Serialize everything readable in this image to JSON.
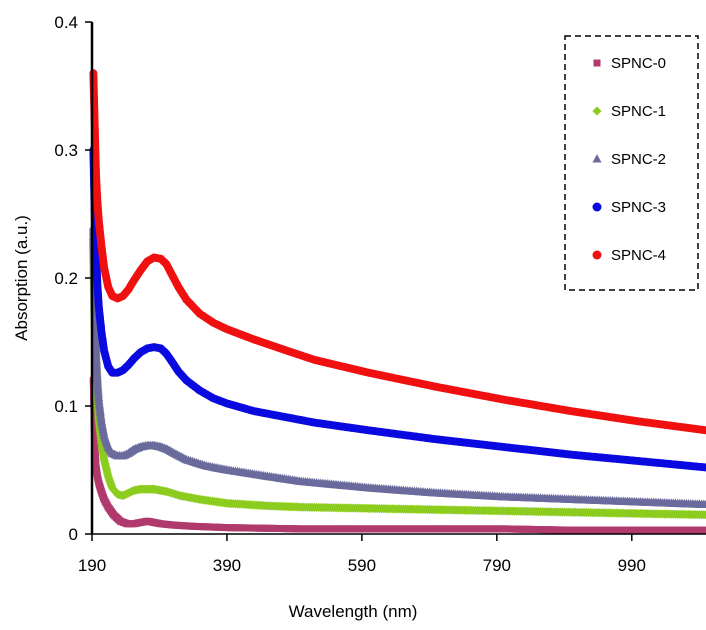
{
  "chart_data": {
    "type": "scatter",
    "xlabel": "Wavelength (nm)",
    "ylabel": "Absorption (a.u.)",
    "xlim": [
      190,
      1100
    ],
    "ylim": [
      0,
      0.4
    ],
    "xticks": [
      190,
      390,
      590,
      790,
      990
    ],
    "yticks": [
      0,
      0.1,
      0.2,
      0.3,
      0.4
    ],
    "xtick_labels": [
      "190",
      "390",
      "590",
      "790",
      "990"
    ],
    "ytick_labels": [
      "0",
      "0.1",
      "0.2",
      "0.3",
      "0.4"
    ],
    "grid": false,
    "legend_position": "top-right",
    "series": [
      {
        "name": "SPNC-0",
        "color": "#b03a6e",
        "marker": "square",
        "x": [
          192,
          194,
          196,
          198,
          200,
          204,
          208,
          214,
          222,
          232,
          242,
          252,
          262,
          272,
          282,
          292,
          310,
          340,
          390,
          500,
          600,
          700,
          800,
          900,
          1000,
          1100
        ],
        "y": [
          0.12,
          0.07,
          0.052,
          0.045,
          0.04,
          0.033,
          0.027,
          0.021,
          0.015,
          0.01,
          0.008,
          0.008,
          0.009,
          0.01,
          0.009,
          0.008,
          0.007,
          0.006,
          0.005,
          0.004,
          0.004,
          0.004,
          0.004,
          0.003,
          0.003,
          0.003
        ]
      },
      {
        "name": "SPNC-1",
        "color": "#8ccc1e",
        "marker": "diamond",
        "x": [
          192,
          194,
          196,
          198,
          200,
          204,
          208,
          214,
          220,
          228,
          236,
          244,
          252,
          262,
          272,
          282,
          292,
          302,
          320,
          350,
          390,
          450,
          500,
          600,
          700,
          800,
          900,
          1000,
          1100
        ],
        "y": [
          0.23,
          0.17,
          0.13,
          0.105,
          0.09,
          0.072,
          0.058,
          0.045,
          0.036,
          0.031,
          0.03,
          0.032,
          0.034,
          0.035,
          0.035,
          0.035,
          0.034,
          0.033,
          0.03,
          0.027,
          0.024,
          0.022,
          0.021,
          0.02,
          0.019,
          0.018,
          0.017,
          0.016,
          0.015
        ]
      },
      {
        "name": "SPNC-2",
        "color": "#6a6a9c",
        "marker": "triangle",
        "x": [
          192,
          194,
          196,
          198,
          200,
          204,
          208,
          214,
          220,
          228,
          236,
          244,
          252,
          262,
          272,
          282,
          292,
          302,
          312,
          330,
          360,
          390,
          450,
          500,
          600,
          700,
          800,
          900,
          1000,
          1100
        ],
        "y": [
          0.24,
          0.18,
          0.14,
          0.12,
          0.105,
          0.088,
          0.077,
          0.068,
          0.063,
          0.061,
          0.061,
          0.063,
          0.066,
          0.068,
          0.069,
          0.069,
          0.068,
          0.066,
          0.063,
          0.058,
          0.053,
          0.05,
          0.045,
          0.041,
          0.036,
          0.032,
          0.029,
          0.027,
          0.025,
          0.023
        ]
      },
      {
        "name": "SPNC-3",
        "color": "#0a0ae0",
        "marker": "circle",
        "x": [
          192,
          194,
          196,
          198,
          200,
          204,
          208,
          214,
          220,
          228,
          236,
          244,
          252,
          262,
          272,
          282,
          292,
          300,
          308,
          318,
          330,
          350,
          370,
          390,
          430,
          480,
          520,
          600,
          700,
          800,
          900,
          1000,
          1100
        ],
        "y": [
          0.3,
          0.25,
          0.22,
          0.195,
          0.178,
          0.158,
          0.143,
          0.131,
          0.126,
          0.126,
          0.128,
          0.132,
          0.137,
          0.142,
          0.145,
          0.146,
          0.145,
          0.141,
          0.135,
          0.127,
          0.12,
          0.112,
          0.106,
          0.102,
          0.096,
          0.091,
          0.087,
          0.081,
          0.074,
          0.068,
          0.062,
          0.057,
          0.052
        ]
      },
      {
        "name": "SPNC-4",
        "color": "#f01010",
        "marker": "circle",
        "x": [
          192,
          194,
          196,
          198,
          200,
          204,
          208,
          214,
          220,
          228,
          236,
          244,
          252,
          262,
          272,
          282,
          292,
          300,
          308,
          318,
          330,
          350,
          370,
          390,
          430,
          480,
          520,
          600,
          700,
          800,
          900,
          1000,
          1100
        ],
        "y": [
          0.36,
          0.32,
          0.28,
          0.26,
          0.245,
          0.225,
          0.208,
          0.193,
          0.186,
          0.184,
          0.186,
          0.191,
          0.198,
          0.206,
          0.213,
          0.216,
          0.215,
          0.211,
          0.203,
          0.193,
          0.183,
          0.172,
          0.165,
          0.16,
          0.152,
          0.143,
          0.136,
          0.126,
          0.115,
          0.105,
          0.096,
          0.088,
          0.081
        ]
      }
    ]
  }
}
